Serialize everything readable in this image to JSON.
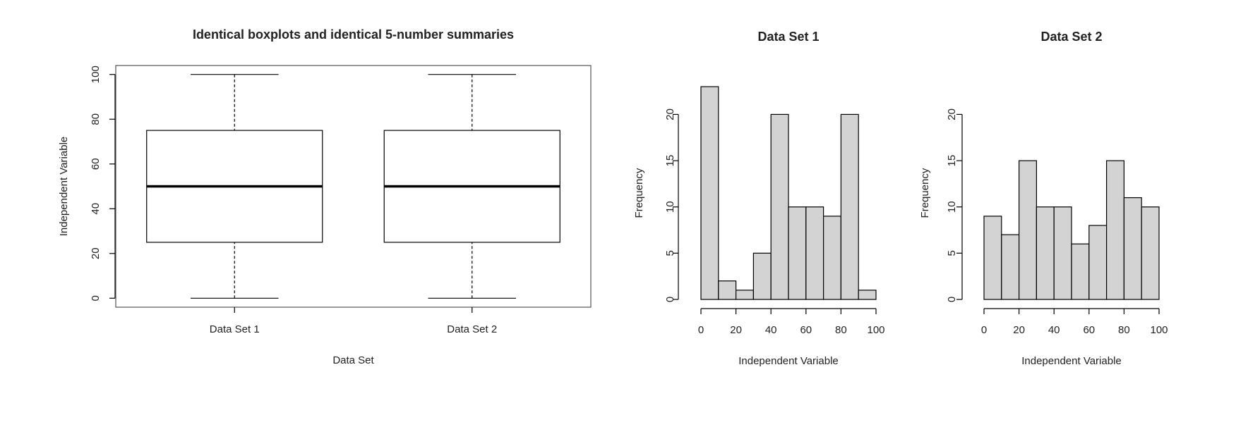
{
  "chart_data": [
    {
      "type": "boxplot",
      "title": "Identical boxplots and identical 5-number summaries",
      "x_label": "Data Set",
      "y_label": "Independent Variable",
      "categories": [
        "Data Set 1",
        "Data Set 2"
      ],
      "boxes": [
        {
          "min": 0,
          "q1": 25,
          "median": 50,
          "q3": 75,
          "max": 100
        },
        {
          "min": 0,
          "q1": 25,
          "median": 50,
          "q3": 75,
          "max": 100
        }
      ],
      "color": "#ffffff",
      "ylim": [
        -4,
        104
      ],
      "yticks": [
        0,
        20,
        40,
        60,
        80,
        100
      ]
    },
    {
      "type": "histogram",
      "title": "Data Set 1",
      "x_label": "Independent Variable",
      "y_label": "Frequency",
      "bins": [
        0,
        10,
        20,
        30,
        40,
        50,
        60,
        70,
        80,
        90,
        100
      ],
      "values": [
        23,
        2,
        1,
        5,
        20,
        10,
        10,
        9,
        20,
        1
      ],
      "color": "#d3d3d3",
      "xlim": [
        0,
        100
      ],
      "xticks": [
        0,
        20,
        40,
        60,
        80,
        100
      ],
      "ylim": [
        0,
        23
      ],
      "yticks": [
        0,
        5,
        10,
        15,
        20
      ]
    },
    {
      "type": "histogram",
      "title": "Data Set 2",
      "x_label": "Independent Variable",
      "y_label": "Frequency",
      "bins": [
        0,
        10,
        20,
        30,
        40,
        50,
        60,
        70,
        80,
        90,
        100
      ],
      "values": [
        9,
        7,
        15,
        10,
        10,
        6,
        8,
        15,
        11,
        10
      ],
      "color": "#d3d3d3",
      "xlim": [
        0,
        100
      ],
      "xticks": [
        0,
        20,
        40,
        60,
        80,
        100
      ],
      "ylim": [
        0,
        23
      ],
      "yticks": [
        0,
        5,
        10,
        15,
        20
      ]
    }
  ]
}
